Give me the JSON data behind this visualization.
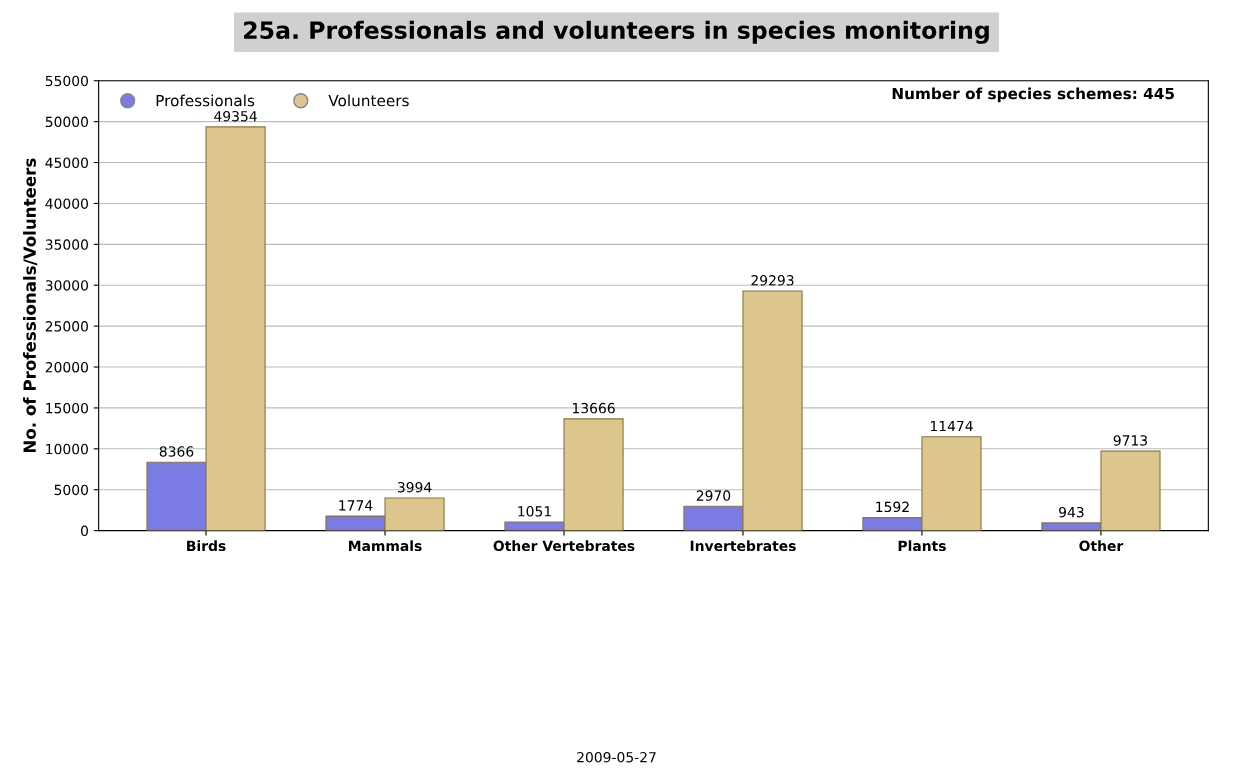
{
  "chart_data": {
    "type": "bar",
    "title": "25a. Professionals and volunteers in species monitoring",
    "categories": [
      "Birds",
      "Mammals",
      "Other Vertebrates",
      "Invertebrates",
      "Plants",
      "Other"
    ],
    "series": [
      {
        "name": "Professionals",
        "color": "#7b7be6",
        "values": [
          8366,
          1774,
          1051,
          2970,
          1592,
          943
        ]
      },
      {
        "name": "Volunteers",
        "color": "#dcc68e",
        "values": [
          49354,
          3994,
          13666,
          29293,
          11474,
          9713
        ]
      }
    ],
    "ylabel": "No. of Professionals/Volunteers",
    "ylim": [
      0,
      55000
    ],
    "yticks": [
      0,
      5000,
      10000,
      15000,
      20000,
      25000,
      30000,
      35000,
      40000,
      45000,
      50000,
      55000
    ],
    "grid": "y",
    "legend": "top left",
    "data_labels": true,
    "annotations": [
      "Number of species schemes: 445",
      "2009-05-27"
    ]
  }
}
